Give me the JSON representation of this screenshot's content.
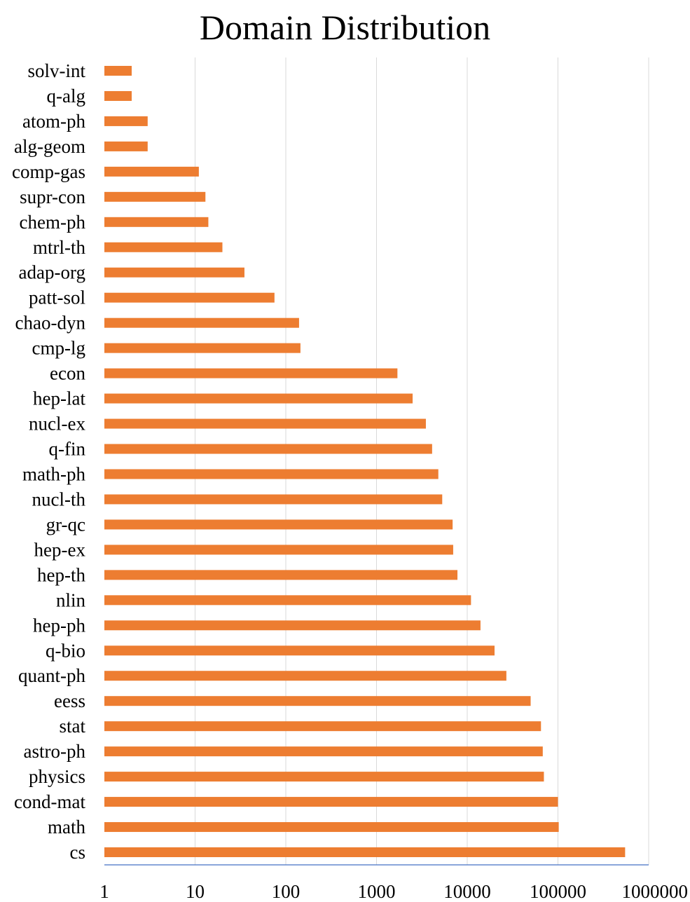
{
  "chart_data": {
    "type": "bar",
    "orientation": "horizontal",
    "title": "Domain Distribution",
    "xlabel": "",
    "ylabel": "",
    "x_scale": "log",
    "xlim": [
      1,
      1000000
    ],
    "x_ticks": [
      "1",
      "10",
      "100",
      "1000",
      "10000",
      "100000",
      "1000000"
    ],
    "x_tick_values": [
      1,
      10,
      100,
      1000,
      10000,
      100000,
      1000000
    ],
    "grid": "vertical",
    "legend": "none",
    "colors": {
      "bar": "#ED7D31",
      "grid": "#D9D9D9",
      "axis": "#4472C4"
    },
    "categories": [
      "solv-int",
      "q-alg",
      "atom-ph",
      "alg-geom",
      "comp-gas",
      "supr-con",
      "chem-ph",
      "mtrl-th",
      "adap-org",
      "patt-sol",
      "chao-dyn",
      "cmp-lg",
      "econ",
      "hep-lat",
      "nucl-ex",
      "q-fin",
      "math-ph",
      "nucl-th",
      "gr-qc",
      "hep-ex",
      "hep-th",
      "nlin",
      "hep-ph",
      "q-bio",
      "quant-ph",
      "eess",
      "stat",
      "astro-ph",
      "physics",
      "cond-mat",
      "math",
      "cs"
    ],
    "values": [
      2,
      2,
      3,
      3,
      11,
      13,
      14,
      20,
      35,
      75,
      140,
      145,
      1700,
      2500,
      3500,
      4100,
      4800,
      5300,
      6900,
      7000,
      7800,
      11000,
      14000,
      20000,
      27000,
      50000,
      65000,
      68000,
      70000,
      100000,
      102000,
      550000
    ]
  }
}
